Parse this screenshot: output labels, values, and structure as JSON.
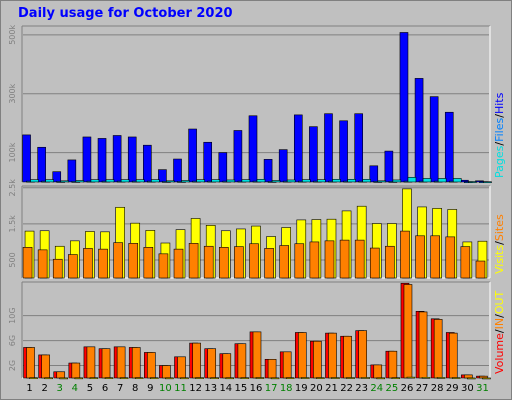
{
  "title": "Daily usage for October 2020",
  "colors": {
    "background": "#c0c0c0",
    "title": "#0000ff",
    "hits": "#0000ff",
    "files": "#0080ff",
    "pages": "#00e0e0",
    "visits": "#ffff00",
    "sites": "#ff8000",
    "kbytes": "#ff0000",
    "weekend_label": "#008000"
  },
  "chart_data": [
    {
      "type": "bar",
      "panel": "hits-files-pages",
      "legend": [
        "Pages",
        "/",
        "Files",
        "/",
        "Hits"
      ],
      "y_tick_labels": [
        "100k",
        "300k",
        "500k"
      ],
      "y_ticks": [
        100000,
        300000,
        500000
      ],
      "ylim": [
        0,
        530000
      ],
      "categories": [
        "1",
        "2",
        "3",
        "4",
        "5",
        "6",
        "7",
        "8",
        "9",
        "10",
        "11",
        "12",
        "13",
        "14",
        "15",
        "16",
        "17",
        "18",
        "19",
        "20",
        "21",
        "22",
        "23",
        "24",
        "25",
        "26",
        "27",
        "28",
        "29",
        "30",
        "31"
      ],
      "series": [
        {
          "name": "Hits",
          "values": [
            160000,
            118000,
            35000,
            75000,
            153000,
            148000,
            158000,
            153000,
            125000,
            42000,
            78000,
            180000,
            135000,
            100000,
            175000,
            225000,
            77000,
            110000,
            228000,
            188000,
            232000,
            208000,
            232000,
            55000,
            105000,
            508000,
            352000,
            290000,
            237000,
            6000,
            4000
          ]
        },
        {
          "name": "Files",
          "values": [
            3000,
            3000,
            2000,
            2000,
            3000,
            3000,
            3000,
            3000,
            3000,
            2000,
            2000,
            3000,
            3000,
            3000,
            3000,
            3000,
            2000,
            3000,
            3000,
            3000,
            3000,
            3000,
            3000,
            2000,
            2000,
            3000,
            3000,
            3000,
            3000,
            1000,
            1000
          ]
        },
        {
          "name": "Pages",
          "values": [
            8000,
            8000,
            4000,
            5000,
            8000,
            8000,
            8000,
            8000,
            8000,
            4000,
            5000,
            8000,
            8000,
            7000,
            8000,
            9000,
            5000,
            7000,
            8000,
            8000,
            9000,
            9000,
            9000,
            4000,
            7000,
            16000,
            12000,
            12000,
            12000,
            1500,
            1000
          ]
        }
      ]
    },
    {
      "type": "bar",
      "panel": "visits-sites",
      "legend": [
        "Visits",
        "/",
        "Sites"
      ],
      "y_tick_labels": [
        "500",
        "1.5k",
        "2.5k"
      ],
      "y_ticks": [
        500,
        1500,
        2500
      ],
      "ylim": [
        0,
        2550
      ],
      "categories": [
        "1",
        "2",
        "3",
        "4",
        "5",
        "6",
        "7",
        "8",
        "9",
        "10",
        "11",
        "12",
        "13",
        "14",
        "15",
        "16",
        "17",
        "18",
        "19",
        "20",
        "21",
        "22",
        "23",
        "24",
        "25",
        "26",
        "27",
        "28",
        "29",
        "30",
        "31"
      ],
      "series": [
        {
          "name": "Visits",
          "values": [
            1300,
            1310,
            880,
            1030,
            1290,
            1280,
            1960,
            1520,
            1320,
            970,
            1340,
            1650,
            1460,
            1310,
            1360,
            1440,
            1150,
            1400,
            1610,
            1620,
            1630,
            1860,
            1990,
            1510,
            1510,
            2470,
            1970,
            1930,
            1900,
            1000,
            1020
          ]
        },
        {
          "name": "Sites",
          "values": [
            850,
            780,
            520,
            650,
            820,
            800,
            980,
            960,
            850,
            670,
            800,
            960,
            880,
            850,
            870,
            950,
            820,
            900,
            950,
            1000,
            1030,
            1050,
            1050,
            830,
            880,
            1300,
            1170,
            1170,
            1140,
            870,
            470
          ]
        }
      ]
    },
    {
      "type": "bar",
      "panel": "volume",
      "legend": [
        "Volume",
        "/",
        "IN",
        "/",
        "OUT"
      ],
      "y_tick_labels": [
        "2G",
        "6G",
        "10G"
      ],
      "y_ticks": [
        2,
        6,
        10
      ],
      "ylim": [
        0,
        15.4
      ],
      "categories": [
        "1",
        "2",
        "3",
        "4",
        "5",
        "6",
        "7",
        "8",
        "9",
        "10",
        "11",
        "12",
        "13",
        "14",
        "15",
        "16",
        "17",
        "18",
        "19",
        "20",
        "21",
        "22",
        "23",
        "24",
        "25",
        "26",
        "27",
        "28",
        "29",
        "30",
        "31"
      ],
      "weekend_days": [
        "3",
        "4",
        "10",
        "11",
        "17",
        "18",
        "24",
        "25",
        "31"
      ],
      "series": [
        {
          "name": "Volume",
          "values": [
            4.9,
            3.7,
            1.0,
            2.4,
            5.0,
            4.7,
            5.0,
            4.9,
            4.1,
            2.0,
            3.4,
            5.6,
            4.7,
            3.9,
            5.5,
            7.4,
            3.0,
            4.2,
            7.3,
            5.9,
            7.2,
            6.7,
            7.6,
            2.1,
            4.3,
            15.2,
            10.7,
            9.5,
            7.3,
            0.5,
            0.3
          ]
        },
        {
          "name": "IN",
          "values": [
            4.9,
            3.7,
            1.0,
            2.4,
            5.0,
            4.7,
            5.0,
            4.9,
            4.1,
            2.0,
            3.4,
            5.6,
            4.7,
            3.9,
            5.5,
            7.4,
            3.0,
            4.2,
            7.3,
            5.9,
            7.2,
            6.7,
            7.6,
            2.1,
            4.3,
            15.0,
            10.6,
            9.4,
            7.2,
            0.5,
            0.3
          ]
        },
        {
          "name": "OUT",
          "values": [
            0.05,
            0.04,
            0.02,
            0.03,
            0.05,
            0.05,
            0.05,
            0.05,
            0.05,
            0.03,
            0.04,
            0.06,
            0.05,
            0.04,
            0.05,
            0.07,
            0.03,
            0.05,
            0.07,
            0.06,
            0.07,
            0.07,
            0.08,
            0.03,
            0.05,
            0.14,
            0.1,
            0.09,
            0.07,
            0.01,
            0.01
          ]
        }
      ]
    }
  ]
}
